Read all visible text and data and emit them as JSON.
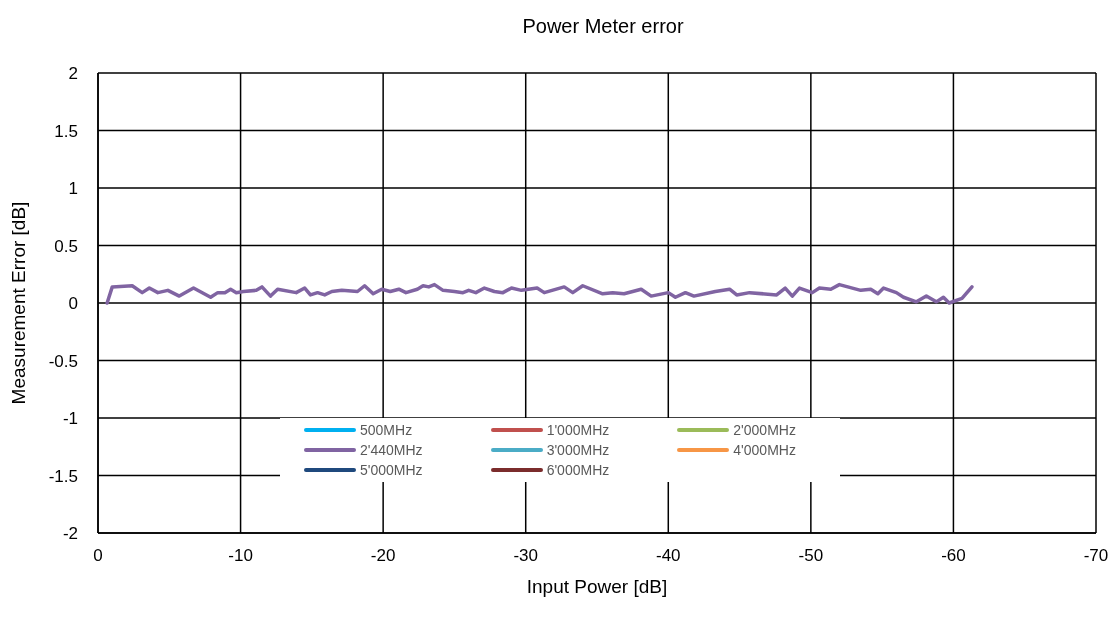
{
  "chart_data": {
    "type": "line",
    "title": "Power Meter error",
    "xlabel": "Input Power [dB]",
    "ylabel": "Measurement Error [dB]",
    "xlim": [
      0,
      -70
    ],
    "xticks": [
      0,
      -10,
      -20,
      -30,
      -40,
      -50,
      -60,
      -70
    ],
    "ylim": [
      -2,
      2
    ],
    "yticks": [
      -2,
      -1.5,
      -1,
      -0.5,
      0,
      0.5,
      1,
      1.5,
      2
    ],
    "grid": true,
    "legend": "bottom",
    "marker": "none",
    "line_style": "solid",
    "series": [
      {
        "name": "500MHz",
        "color": "#00b0f0"
      },
      {
        "name": "1'000MHz",
        "color": "#c0504d"
      },
      {
        "name": "2'000MHz",
        "color": "#9bbb59"
      },
      {
        "name": "2'440MHz",
        "color": "#8064a2",
        "x": [
          -0.64,
          -1.0,
          -2.4,
          -3.1,
          -3.6,
          -4.2,
          -4.9,
          -5.7,
          -6.7,
          -7.9,
          -8.4,
          -8.9,
          -9.3,
          -9.7,
          -10.2,
          -11.1,
          -11.5,
          -12.1,
          -12.6,
          -13.9,
          -14.5,
          -14.9,
          -15.4,
          -15.9,
          -16.4,
          -17.1,
          -18.2,
          -18.7,
          -19.3,
          -19.9,
          -20.5,
          -21.1,
          -21.6,
          -22.4,
          -22.8,
          -23.2,
          -23.6,
          -24.2,
          -25.0,
          -25.6,
          -26.0,
          -26.5,
          -27.1,
          -27.8,
          -28.4,
          -29.0,
          -29.7,
          -30.8,
          -31.3,
          -32.7,
          -33.3,
          -34.0,
          -35.4,
          -36.1,
          -36.9,
          -38.1,
          -38.8,
          -40.0,
          -40.5,
          -41.2,
          -41.8,
          -43.3,
          -44.3,
          -44.8,
          -45.7,
          -47.6,
          -48.2,
          -48.7,
          -49.2,
          -50.1,
          -50.6,
          -51.4,
          -52.0,
          -53.5,
          -54.2,
          -54.7,
          -55.1,
          -56.0,
          -56.5,
          -57.4,
          -58.1,
          -58.8,
          -59.3,
          -59.7,
          -60.6,
          -61.3
        ],
        "values": [
          0.0,
          0.14,
          0.15,
          0.09,
          0.13,
          0.09,
          0.11,
          0.06,
          0.13,
          0.05,
          0.09,
          0.09,
          0.12,
          0.09,
          0.1,
          0.11,
          0.14,
          0.06,
          0.12,
          0.09,
          0.13,
          0.07,
          0.09,
          0.07,
          0.1,
          0.11,
          0.1,
          0.15,
          0.08,
          0.12,
          0.1,
          0.12,
          0.09,
          0.12,
          0.15,
          0.14,
          0.16,
          0.11,
          0.1,
          0.09,
          0.11,
          0.09,
          0.13,
          0.1,
          0.09,
          0.13,
          0.11,
          0.13,
          0.09,
          0.14,
          0.09,
          0.15,
          0.08,
          0.09,
          0.08,
          0.12,
          0.06,
          0.09,
          0.05,
          0.09,
          0.06,
          0.1,
          0.12,
          0.07,
          0.09,
          0.07,
          0.13,
          0.06,
          0.13,
          0.09,
          0.13,
          0.12,
          0.16,
          0.11,
          0.12,
          0.08,
          0.13,
          0.09,
          0.05,
          0.01,
          0.06,
          0.01,
          0.05,
          0.0,
          0.04,
          0.14
        ]
      },
      {
        "name": "3'000MHz",
        "color": "#4bacc6"
      },
      {
        "name": "4'000MHz",
        "color": "#f79646"
      },
      {
        "name": "5'000MHz",
        "color": "#1f497d"
      },
      {
        "name": "6'000MHz",
        "color": "#7b2c2c"
      }
    ]
  }
}
